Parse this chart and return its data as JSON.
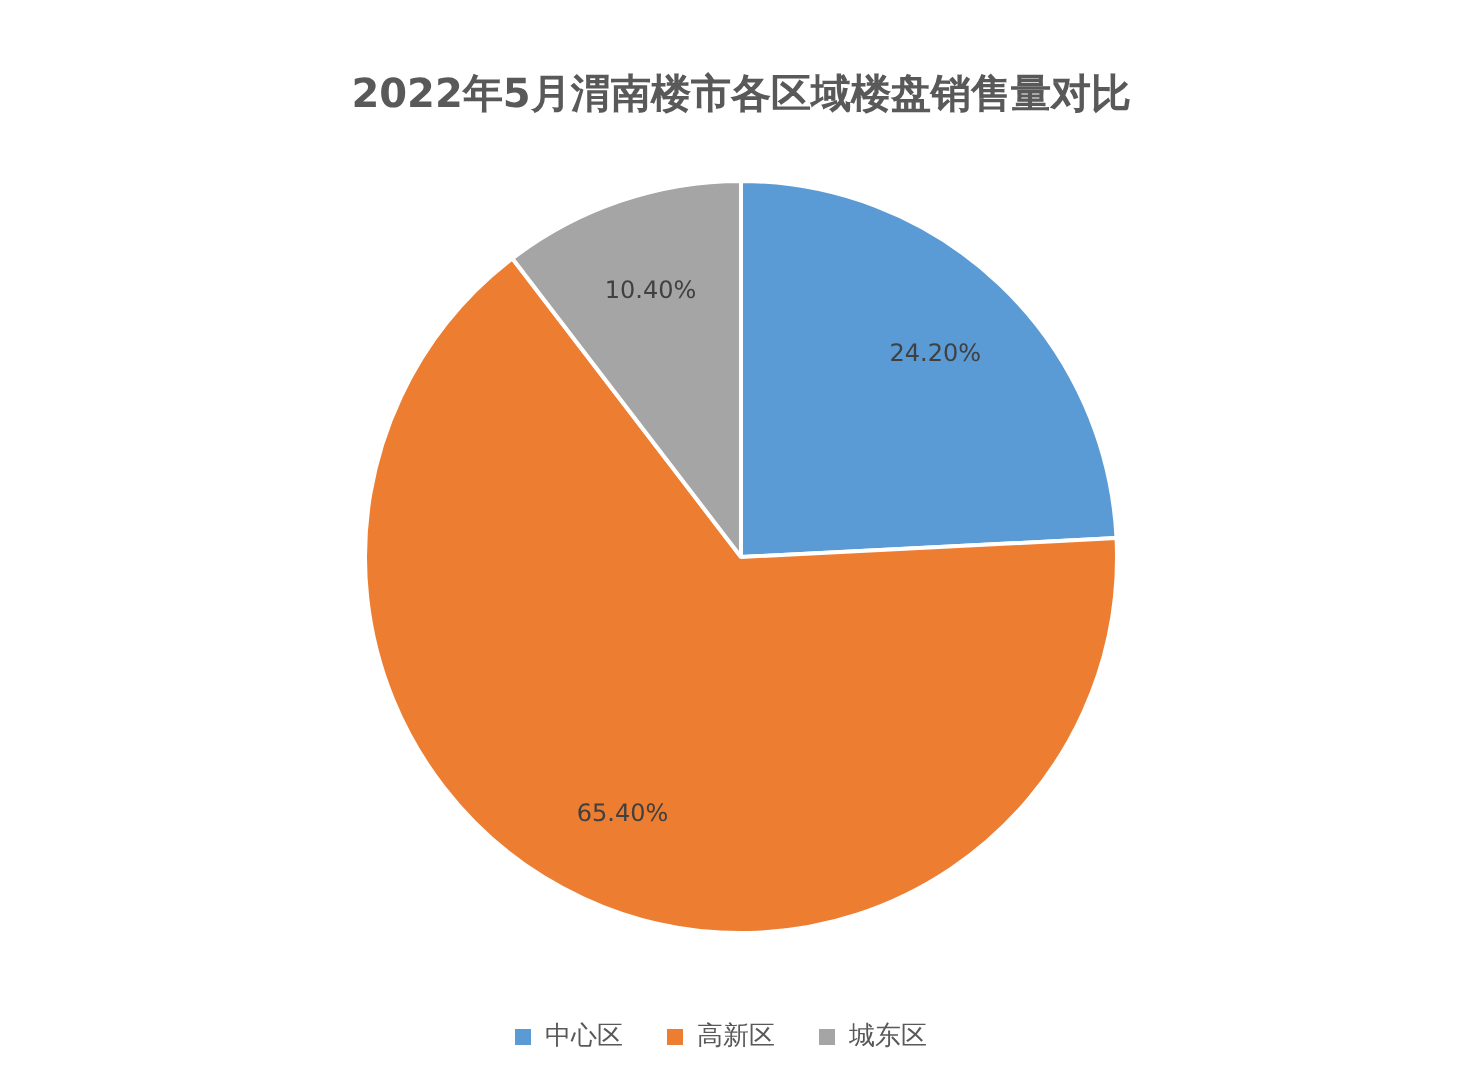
{
  "chart_data": {
    "type": "pie",
    "title": "2022年5月渭南楼市各区域楼盘销售量对比",
    "categories": [
      "中心区",
      "高新区",
      "城东区"
    ],
    "values": [
      24.2,
      65.4,
      10.4
    ],
    "colors": [
      "#5b9bd5",
      "#ed7d31",
      "#a5a5a5"
    ],
    "value_labels": [
      "24.20%",
      "65.40%",
      "10.40%"
    ],
    "legend": "bottom"
  }
}
